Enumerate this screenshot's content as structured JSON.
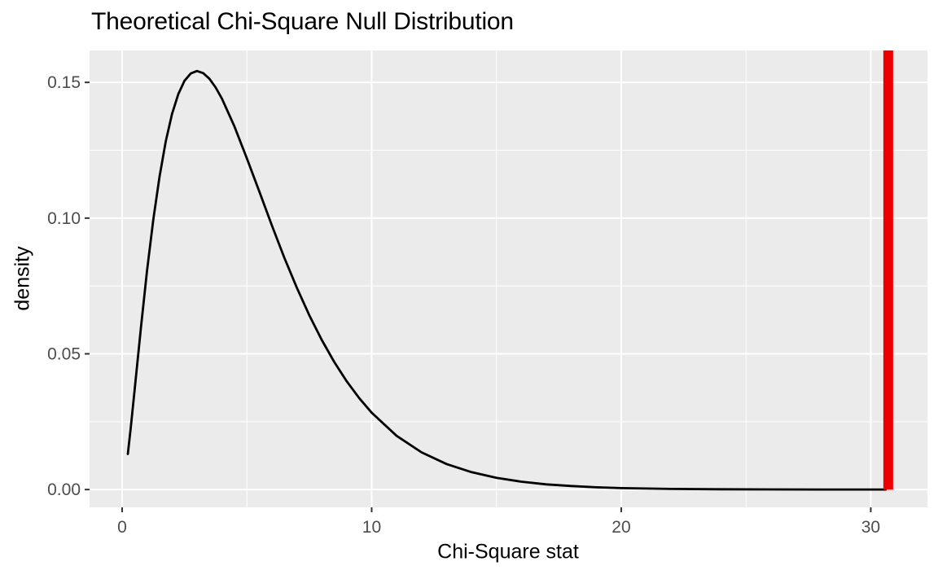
{
  "title": "Theoretical Chi-Square Null Distribution",
  "chart_data": {
    "type": "line",
    "title": "Theoretical Chi-Square Null Distribution",
    "xlabel": "Chi-Square stat",
    "ylabel": "density",
    "xlim": [
      -1.305,
      32.27
    ],
    "ylim": [
      -0.00655,
      0.16175
    ],
    "grid": "major-and-minor",
    "legend_position": "none",
    "theme": "ggplot2-grey",
    "x_major_ticks": [
      {
        "value": 0,
        "label": "0"
      },
      {
        "value": 10,
        "label": "10"
      },
      {
        "value": 20,
        "label": "20"
      },
      {
        "value": 30,
        "label": "30"
      }
    ],
    "x_minor_ticks": [
      5,
      15,
      25
    ],
    "y_major_ticks": [
      {
        "value": 0.0,
        "label": "0.00"
      },
      {
        "value": 0.05,
        "label": "0.05"
      },
      {
        "value": 0.1,
        "label": "0.10"
      },
      {
        "value": 0.15,
        "label": "0.15"
      }
    ],
    "y_minor_ticks": [
      0.025,
      0.075,
      0.125
    ],
    "series": [
      {
        "name": "chi-square-density",
        "distribution": "chi-square pdf",
        "df": 5,
        "color": "#000000",
        "points": [
          [
            0.23,
            0.0131
          ],
          [
            0.35,
            0.0231
          ],
          [
            0.5,
            0.0366
          ],
          [
            0.75,
            0.0594
          ],
          [
            1.0,
            0.0807
          ],
          [
            1.25,
            0.0995
          ],
          [
            1.5,
            0.1154
          ],
          [
            1.75,
            0.1283
          ],
          [
            2.0,
            0.1384
          ],
          [
            2.25,
            0.1457
          ],
          [
            2.5,
            0.1506
          ],
          [
            2.75,
            0.1533
          ],
          [
            3.0,
            0.1542
          ],
          [
            3.25,
            0.1534
          ],
          [
            3.5,
            0.1513
          ],
          [
            3.75,
            0.1481
          ],
          [
            4.0,
            0.144
          ],
          [
            4.5,
            0.1338
          ],
          [
            5.0,
            0.122
          ],
          [
            5.5,
            0.1097
          ],
          [
            6.0,
            0.0973
          ],
          [
            6.5,
            0.0854
          ],
          [
            7.0,
            0.0744
          ],
          [
            7.5,
            0.0642
          ],
          [
            8.0,
            0.0551
          ],
          [
            8.5,
            0.047
          ],
          [
            9.0,
            0.0399
          ],
          [
            9.5,
            0.0337
          ],
          [
            10.0,
            0.0283
          ],
          [
            11.0,
            0.0198
          ],
          [
            12.0,
            0.0137
          ],
          [
            13.0,
            0.0094
          ],
          [
            14.0,
            0.0064
          ],
          [
            15.0,
            0.0043
          ],
          [
            16.0,
            0.0029
          ],
          [
            17.0,
            0.0019
          ],
          [
            18.0,
            0.0013
          ],
          [
            19.0,
            0.00082
          ],
          [
            20.0,
            0.00054
          ],
          [
            22.0,
            0.00023
          ],
          [
            24.0,
            9.6e-05
          ],
          [
            26.0,
            4e-05
          ],
          [
            28.0,
            1.6e-05
          ],
          [
            30.0,
            6.7e-06
          ],
          [
            30.6,
            5e-06
          ]
        ]
      }
    ],
    "vline": {
      "x": 30.7,
      "color": "#EE0000",
      "stroke_px": 12,
      "y_from": 0,
      "extends_to_panel_top": true
    },
    "colors": {
      "panel_bg": "#EBEBEB",
      "grid": "#FFFFFF",
      "curve": "#000000",
      "tick_mark": "#333333",
      "tick_text": "#4D4D4D",
      "title_text": "#000000",
      "axis_title_text": "#000000"
    }
  }
}
